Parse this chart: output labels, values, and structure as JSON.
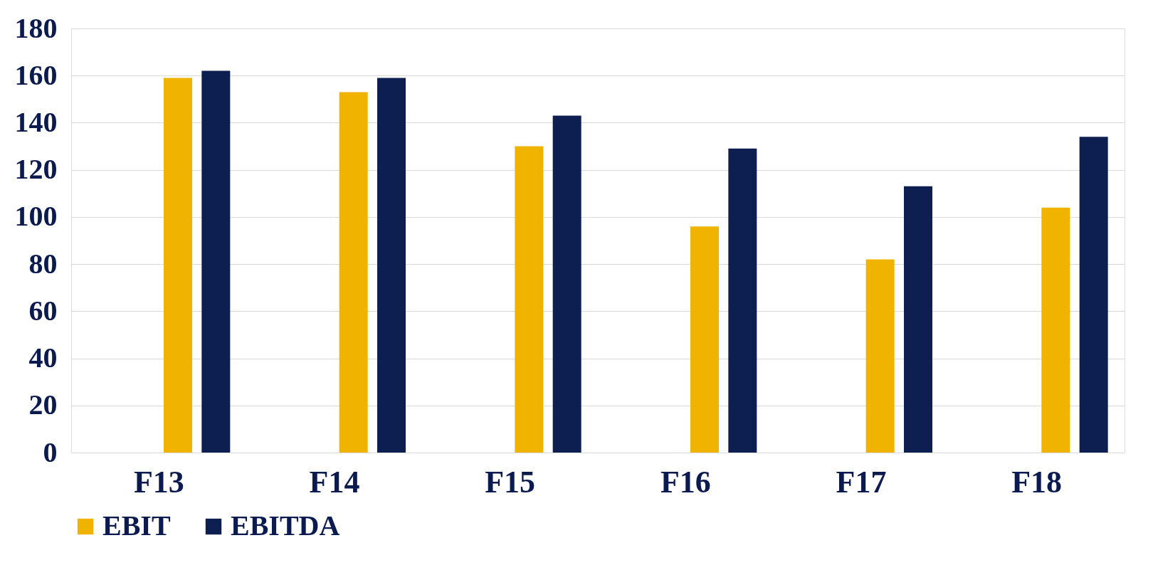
{
  "chart_data": {
    "type": "bar",
    "categories": [
      "F13",
      "F14",
      "F15",
      "F16",
      "F17",
      "F18"
    ],
    "series": [
      {
        "name": "EBIT",
        "color": "#f0b400",
        "values": [
          159,
          153,
          130,
          96,
          82,
          104
        ]
      },
      {
        "name": "EBITDA",
        "color": "#0c1f50",
        "values": [
          162,
          159,
          143,
          129,
          113,
          134
        ]
      }
    ],
    "ylim": [
      0,
      180
    ],
    "yticks": [
      0,
      20,
      40,
      60,
      80,
      100,
      120,
      140,
      160,
      180
    ],
    "grid": "y",
    "legend": "bottom"
  }
}
